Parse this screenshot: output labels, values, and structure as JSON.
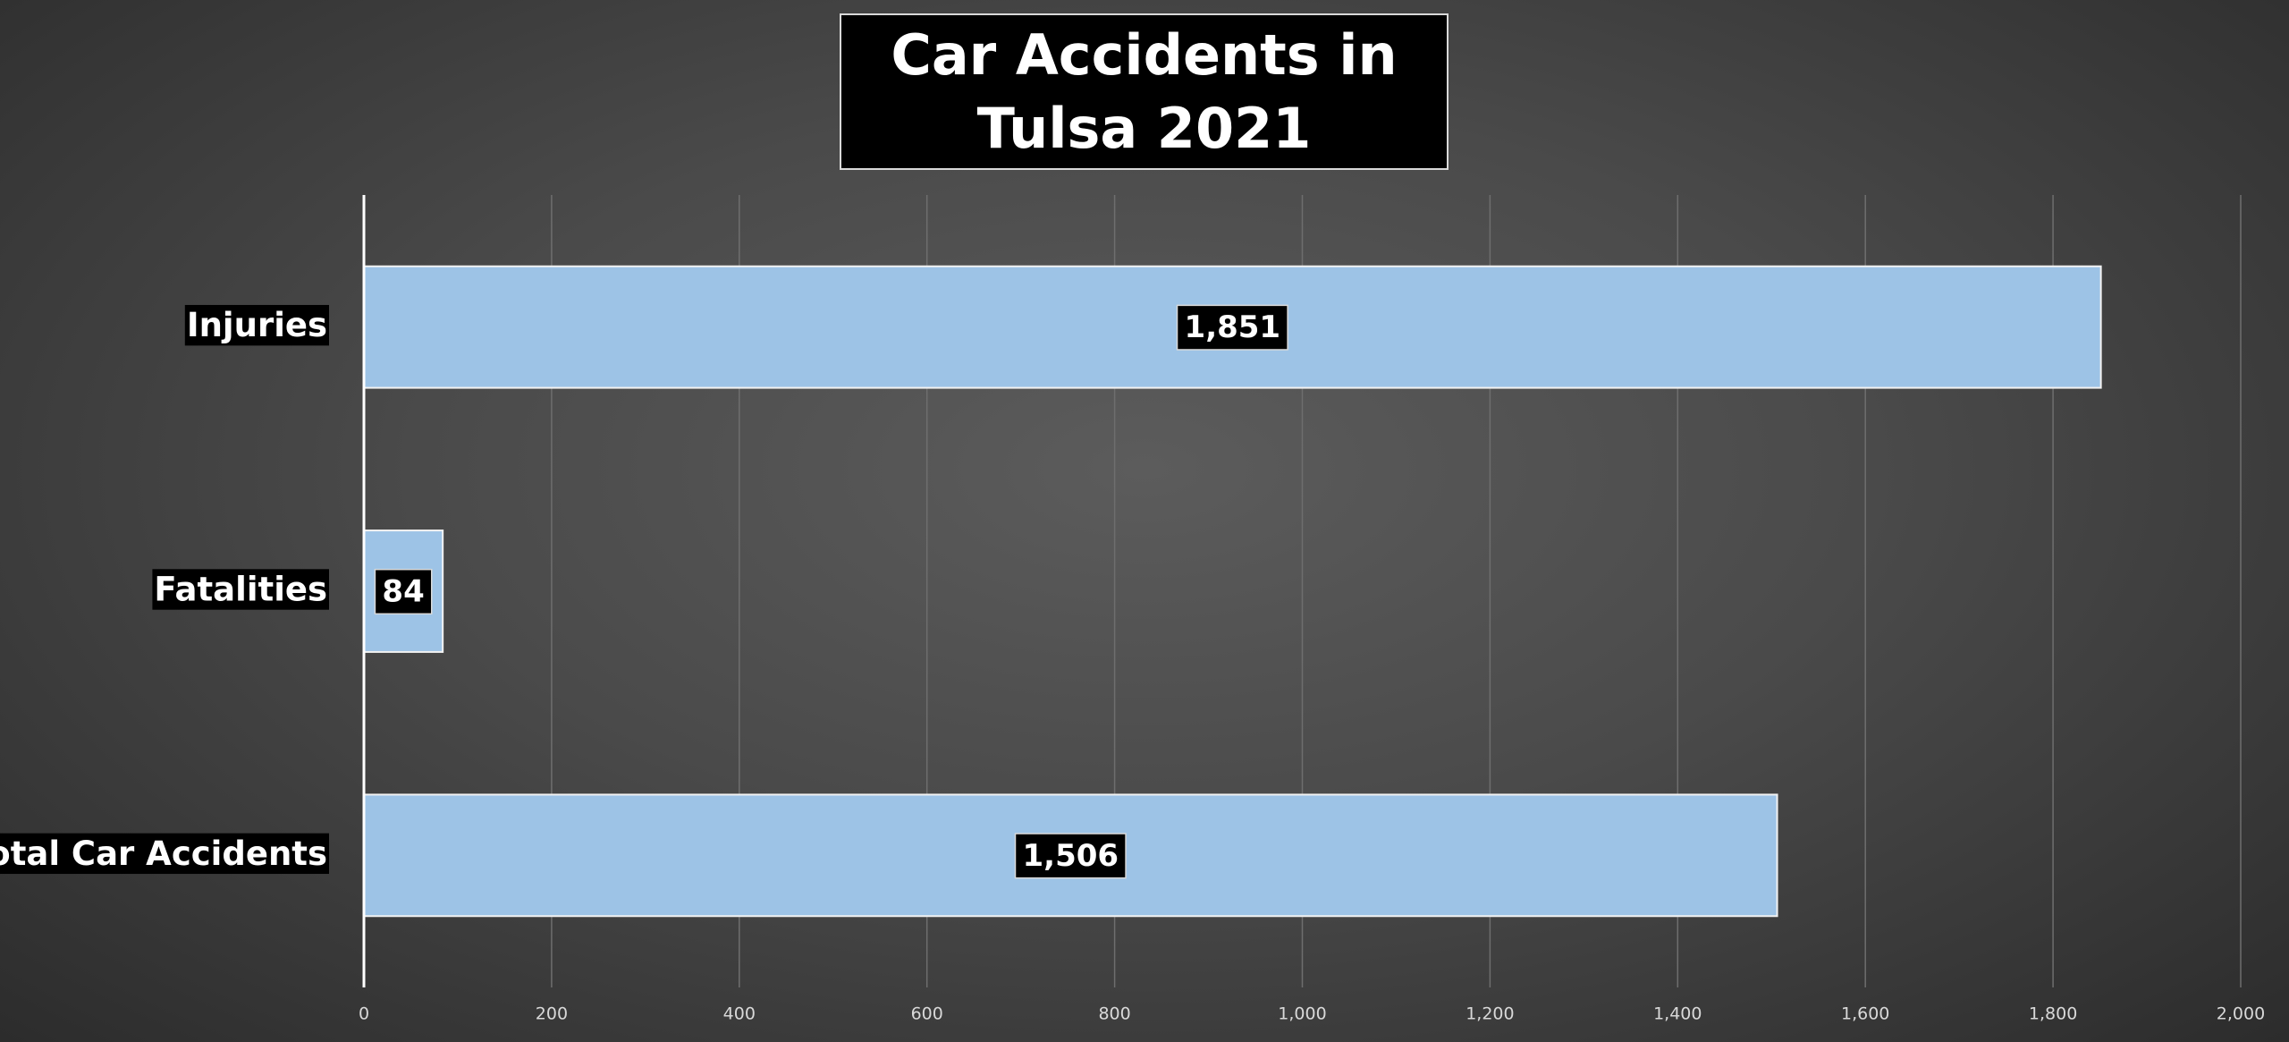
{
  "chart_data": {
    "type": "hbar",
    "title": "Car Accidents in Tulsa 2021",
    "categories": [
      "Injuries",
      "Fatalities",
      "Total Car Accidents"
    ],
    "values": [
      1851,
      84,
      1506
    ],
    "value_labels": [
      "1,851",
      "84",
      "1,506"
    ],
    "color": "#9dc3e6",
    "xlim": [
      0,
      2000
    ],
    "xticks": [
      0,
      200,
      400,
      600,
      800,
      {
        "value": 1000,
        "label": "1,000"
      },
      {
        "value": 1200,
        "label": "1,200"
      },
      {
        "value": 1400,
        "label": "1,400"
      },
      {
        "value": 1600,
        "label": "1,600"
      },
      {
        "value": 1800,
        "label": "1,800"
      },
      {
        "value": 2000,
        "label": "2,000"
      }
    ],
    "grid": true
  }
}
